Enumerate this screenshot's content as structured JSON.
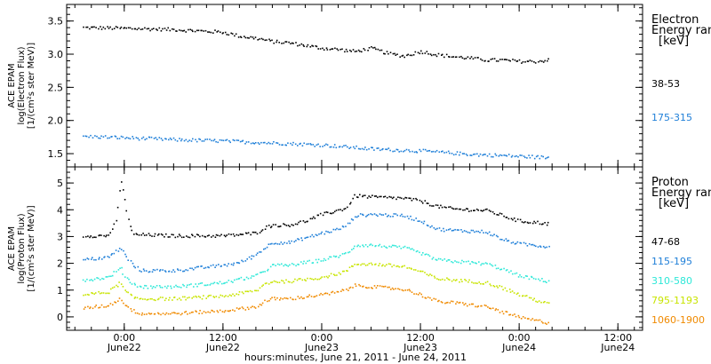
{
  "chart_data": [
    {
      "type": "scatter",
      "panel": "electron",
      "ylabel_lines": [
        "ACE EPAM",
        "log(Electron Flux)",
        "[1/(cm²s ster MeV)]"
      ],
      "ylim": [
        1.3,
        3.75
      ],
      "yticks": [
        1.5,
        2.0,
        2.5,
        3.0,
        3.5
      ],
      "ytick_labels": [
        "1.5",
        "2.0",
        "2.5",
        "3.0",
        "3.5"
      ],
      "legend_title_lines": [
        "Electron",
        "Energy ran",
        "[keV]"
      ],
      "series": [
        {
          "name": "38-53",
          "color": "#000000",
          "points": [
            [
              -5,
              3.41
            ],
            [
              0,
              3.4
            ],
            [
              6,
              3.38
            ],
            [
              12,
              3.34
            ],
            [
              14,
              3.28
            ],
            [
              16,
              3.25
            ],
            [
              18,
              3.2
            ],
            [
              20,
              3.18
            ],
            [
              22,
              3.14
            ],
            [
              24,
              3.1
            ],
            [
              26,
              3.08
            ],
            [
              28,
              3.05
            ],
            [
              30,
              3.1
            ],
            [
              32,
              3.02
            ],
            [
              34,
              2.98
            ],
            [
              36,
              3.05
            ],
            [
              38,
              3.0
            ],
            [
              40,
              2.97
            ],
            [
              42,
              2.95
            ],
            [
              44,
              2.92
            ],
            [
              46,
              2.92
            ],
            [
              48,
              2.9
            ],
            [
              50,
              2.9
            ],
            [
              51.5,
              2.92
            ]
          ]
        },
        {
          "name": "175-315",
          "color": "#1f7fd8",
          "points": [
            [
              -5,
              1.77
            ],
            [
              0,
              1.75
            ],
            [
              6,
              1.72
            ],
            [
              12,
              1.7
            ],
            [
              18,
              1.67
            ],
            [
              24,
              1.64
            ],
            [
              30,
              1.58
            ],
            [
              36,
              1.55
            ],
            [
              42,
              1.5
            ],
            [
              48,
              1.47
            ],
            [
              51.5,
              1.45
            ]
          ]
        }
      ]
    },
    {
      "type": "scatter",
      "panel": "proton",
      "ylabel_lines": [
        "ACE EPAM",
        "log(Proton Flux)",
        "[1/(cm²s ster MeV)]"
      ],
      "ylim": [
        -0.5,
        5.6
      ],
      "yticks": [
        0,
        1,
        2,
        3,
        4,
        5
      ],
      "ytick_labels": [
        "0",
        "1",
        "2",
        "3",
        "4",
        "5"
      ],
      "legend_title_lines": [
        "Proton",
        "Energy ran",
        "[keV]"
      ],
      "series": [
        {
          "name": "47-68",
          "color": "#000000",
          "points": [
            [
              -5,
              3.05
            ],
            [
              -2,
              3.05
            ],
            [
              -1,
              3.6
            ],
            [
              -0.5,
              5.2
            ],
            [
              0,
              4.4
            ],
            [
              0.5,
              3.6
            ],
            [
              1,
              3.1
            ],
            [
              6,
              3.05
            ],
            [
              12,
              3.05
            ],
            [
              16,
              3.15
            ],
            [
              17,
              3.35
            ],
            [
              18,
              3.45
            ],
            [
              20,
              3.45
            ],
            [
              22,
              3.6
            ],
            [
              24,
              3.85
            ],
            [
              26,
              4.0
            ],
            [
              27,
              4.1
            ],
            [
              28,
              4.55
            ],
            [
              30,
              4.5
            ],
            [
              34,
              4.45
            ],
            [
              36,
              4.35
            ],
            [
              38,
              4.15
            ],
            [
              40,
              4.05
            ],
            [
              44,
              4.0
            ],
            [
              46,
              3.8
            ],
            [
              48,
              3.6
            ],
            [
              50,
              3.55
            ],
            [
              51.5,
              3.5
            ]
          ]
        },
        {
          "name": "115-195",
          "color": "#1f7fd8",
          "points": [
            [
              -5,
              2.15
            ],
            [
              -2,
              2.25
            ],
            [
              -0.5,
              2.6
            ],
            [
              0,
              2.35
            ],
            [
              1,
              1.95
            ],
            [
              2,
              1.75
            ],
            [
              6,
              1.75
            ],
            [
              12,
              1.95
            ],
            [
              14,
              2.05
            ],
            [
              16,
              2.35
            ],
            [
              17,
              2.6
            ],
            [
              18,
              2.8
            ],
            [
              20,
              2.8
            ],
            [
              24,
              3.15
            ],
            [
              26,
              3.3
            ],
            [
              27,
              3.45
            ],
            [
              28,
              3.8
            ],
            [
              30,
              3.85
            ],
            [
              34,
              3.8
            ],
            [
              36,
              3.6
            ],
            [
              38,
              3.3
            ],
            [
              40,
              3.25
            ],
            [
              44,
              3.2
            ],
            [
              46,
              2.9
            ],
            [
              48,
              2.75
            ],
            [
              51.5,
              2.65
            ]
          ]
        },
        {
          "name": "310-580",
          "color": "#2ee8d8",
          "points": [
            [
              -5,
              1.4
            ],
            [
              -2,
              1.5
            ],
            [
              -0.5,
              1.85
            ],
            [
              0,
              1.55
            ],
            [
              1,
              1.25
            ],
            [
              2,
              1.15
            ],
            [
              6,
              1.15
            ],
            [
              12,
              1.3
            ],
            [
              16,
              1.55
            ],
            [
              17,
              1.75
            ],
            [
              18,
              1.95
            ],
            [
              20,
              1.95
            ],
            [
              24,
              2.15
            ],
            [
              26,
              2.3
            ],
            [
              27,
              2.4
            ],
            [
              28,
              2.7
            ],
            [
              30,
              2.7
            ],
            [
              34,
              2.6
            ],
            [
              36,
              2.4
            ],
            [
              38,
              2.15
            ],
            [
              40,
              2.1
            ],
            [
              44,
              2.0
            ],
            [
              46,
              1.8
            ],
            [
              48,
              1.55
            ],
            [
              51.5,
              1.35
            ]
          ]
        },
        {
          "name": "795-1193",
          "color": "#c8e400",
          "points": [
            [
              -5,
              0.85
            ],
            [
              -2,
              0.95
            ],
            [
              -0.5,
              1.3
            ],
            [
              0,
              1.0
            ],
            [
              1,
              0.75
            ],
            [
              2,
              0.7
            ],
            [
              6,
              0.7
            ],
            [
              12,
              0.8
            ],
            [
              16,
              1.0
            ],
            [
              17,
              1.25
            ],
            [
              18,
              1.35
            ],
            [
              20,
              1.35
            ],
            [
              24,
              1.5
            ],
            [
              26,
              1.65
            ],
            [
              27,
              1.75
            ],
            [
              28,
              2.0
            ],
            [
              30,
              2.0
            ],
            [
              34,
              1.9
            ],
            [
              36,
              1.7
            ],
            [
              38,
              1.45
            ],
            [
              40,
              1.4
            ],
            [
              44,
              1.3
            ],
            [
              46,
              1.1
            ],
            [
              48,
              0.85
            ],
            [
              51.5,
              0.5
            ]
          ]
        },
        {
          "name": "1060-1900",
          "color": "#f08a00",
          "points": [
            [
              -5,
              0.35
            ],
            [
              -2,
              0.45
            ],
            [
              -0.5,
              0.7
            ],
            [
              0,
              0.5
            ],
            [
              1,
              0.25
            ],
            [
              2,
              0.15
            ],
            [
              6,
              0.15
            ],
            [
              12,
              0.25
            ],
            [
              16,
              0.4
            ],
            [
              17,
              0.6
            ],
            [
              18,
              0.7
            ],
            [
              20,
              0.7
            ],
            [
              24,
              0.85
            ],
            [
              26,
              0.95
            ],
            [
              27,
              1.05
            ],
            [
              28,
              1.2
            ],
            [
              30,
              1.15
            ],
            [
              34,
              1.05
            ],
            [
              36,
              0.85
            ],
            [
              38,
              0.6
            ],
            [
              40,
              0.55
            ],
            [
              44,
              0.4
            ],
            [
              46,
              0.2
            ],
            [
              48,
              0.0
            ],
            [
              51.5,
              -0.2
            ]
          ]
        }
      ]
    }
  ],
  "x_axis": {
    "xlim": [
      -7,
      63
    ],
    "ticks": [
      {
        "x": 0,
        "line1": "0:00",
        "line2": "June22"
      },
      {
        "x": 12,
        "line1": "12:00",
        "line2": "June22"
      },
      {
        "x": 24,
        "line1": "0:00",
        "line2": "June23"
      },
      {
        "x": 36,
        "line1": "12:00",
        "line2": "June23"
      },
      {
        "x": 48,
        "line1": "0:00",
        "line2": "June24"
      },
      {
        "x": 60,
        "line1": "12:00",
        "line2": "June24"
      }
    ],
    "xlabel": "hours:minutes, June 21, 2011 - June 24, 2011"
  }
}
